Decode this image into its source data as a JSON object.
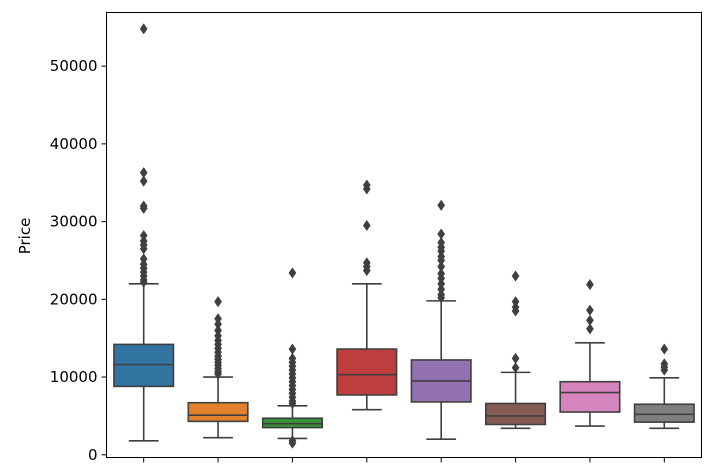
{
  "chart_data": {
    "type": "box",
    "title": "",
    "xlabel": "",
    "ylabel": "Price",
    "ylim": [
      -350,
      56900
    ],
    "yticks": [
      0,
      10000,
      20000,
      30000,
      40000,
      50000
    ],
    "ytick_labels": [
      "0",
      "10000",
      "20000",
      "30000",
      "40000",
      "50000"
    ],
    "categories": [
      "",
      "",
      "",
      "",
      "",
      "",
      "",
      ""
    ],
    "grid": false,
    "legend": "none",
    "boxes": [
      {
        "color": "#3274a1",
        "whisker_low": 1800,
        "q1": 8800,
        "median": 11600,
        "q3": 14200,
        "whisker_high": 22000,
        "outliers": [
          54800,
          36300,
          35200,
          32000,
          31700,
          28200,
          27500,
          27000,
          26500,
          25200,
          24500,
          24000,
          23500,
          23000,
          22500,
          22200
        ]
      },
      {
        "color": "#e1812c",
        "whisker_low": 2200,
        "q1": 4300,
        "median": 5100,
        "q3": 6700,
        "whisker_high": 10000,
        "outliers": [
          19700,
          17500,
          16800,
          16000,
          15300,
          14700,
          14200,
          13700,
          13200,
          12700,
          12300,
          11900,
          11500,
          11100,
          10700,
          10400
        ]
      },
      {
        "color": "#3a923a",
        "whisker_low": 2100,
        "q1": 3500,
        "median": 4000,
        "q3": 4700,
        "whisker_high": 6300,
        "outliers": [
          23400,
          13600,
          12400,
          11900,
          11400,
          10900,
          10400,
          9900,
          9400,
          8900,
          8400,
          7900,
          7400,
          6900,
          6600,
          1800,
          1500
        ]
      },
      {
        "color": "#c03d3e",
        "whisker_low": 5800,
        "q1": 7700,
        "median": 10300,
        "q3": 13600,
        "whisker_high": 22000,
        "outliers": [
          34700,
          34200,
          29500,
          24700,
          24200,
          23700
        ]
      },
      {
        "color": "#9372b2",
        "whisker_low": 2000,
        "q1": 6800,
        "median": 9500,
        "q3": 12200,
        "whisker_high": 19800,
        "outliers": [
          32100,
          28400,
          27300,
          26700,
          26200,
          25500,
          25000,
          24200,
          23300,
          22700,
          22000,
          21300,
          20600,
          20200
        ]
      },
      {
        "color": "#845b53",
        "whisker_low": 3400,
        "q1": 3900,
        "median": 5000,
        "q3": 6600,
        "whisker_high": 10600,
        "outliers": [
          23000,
          19700,
          19000,
          18500,
          12400,
          11200
        ]
      },
      {
        "color": "#d684bd",
        "whisker_low": 3700,
        "q1": 5500,
        "median": 8000,
        "q3": 9400,
        "whisker_high": 14400,
        "outliers": [
          21900,
          18600,
          17300,
          16200
        ]
      },
      {
        "color": "#7f7f7f",
        "whisker_low": 3400,
        "q1": 4200,
        "median": 5200,
        "q3": 6500,
        "whisker_high": 9900,
        "outliers": [
          13600,
          11700,
          11300,
          10900
        ]
      }
    ]
  }
}
